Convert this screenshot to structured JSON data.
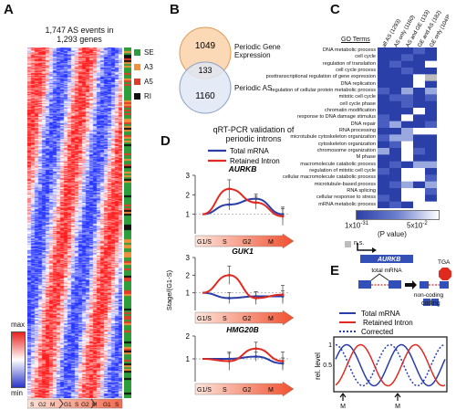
{
  "panelA": {
    "label": "A",
    "title_line1": "1,747 AS events in",
    "title_line2": "1,293 genes",
    "legend": [
      {
        "name": "SE",
        "color": "#2e9e3a"
      },
      {
        "name": "A3",
        "color": "#f0903a"
      },
      {
        "name": "A5",
        "color": "#e23b2a"
      },
      {
        "name": "RI",
        "color": "#111111"
      }
    ],
    "scale_max": "max",
    "scale_min": "min",
    "stages": [
      "S",
      "G2",
      "M",
      "G1",
      "S",
      "G2",
      "M",
      "G1",
      "S"
    ]
  },
  "panelB": {
    "label": "B",
    "top_value": "1049",
    "overlap_value": "133",
    "bottom_value": "1160",
    "top_label_line1": "Periodic Gene",
    "top_label_line2": "Expression",
    "bottom_label": "Periodic AS"
  },
  "panelC": {
    "label": "C",
    "go_header": "GO Terms",
    "columns": [
      "all AS (1293)",
      "AS only (1160)",
      "AS and GE (133)",
      "GE and AS (182)",
      "GE only (1049)"
    ],
    "terms": [
      "DNA metabolic process",
      "cell cycle",
      "regulation of translation",
      "cell cycle process",
      "posttranscriptional regulation of gene expression",
      "DNA replication",
      "regulation of cellular protein metabolic process",
      "mitotic cell cycle",
      "cell cycle phase",
      "chromatin modification",
      "response to DNA damage stimulus",
      "DNA repair",
      "RNA processing",
      "microtubule cytoskeleton organization",
      "cytoskeleton organization",
      "chromosome organization",
      "M phase",
      "macromolecule catabolic process",
      "regulation of mitotic cell cycle",
      "cellular macromolecule catabolic process",
      "microtubule-based process",
      "RNA splicing",
      "cellular response to stress",
      "mRNA metabolic process"
    ],
    "heat": [
      [
        0,
        0,
        0,
        1,
        0
      ],
      [
        0,
        0,
        1,
        0,
        0
      ],
      [
        0,
        1,
        0,
        0,
        3
      ],
      [
        0,
        0,
        1,
        0,
        0
      ],
      [
        0,
        0,
        0,
        3,
        4
      ],
      [
        0,
        0,
        0,
        3,
        0
      ],
      [
        1,
        0,
        2,
        0,
        2
      ],
      [
        0,
        1,
        1,
        0,
        1
      ],
      [
        0,
        0,
        1,
        0,
        0
      ],
      [
        0,
        0,
        0,
        3,
        0
      ],
      [
        1,
        0,
        3,
        0,
        0
      ],
      [
        1,
        2,
        0,
        0,
        1
      ],
      [
        0,
        0,
        2,
        3,
        3
      ],
      [
        1,
        2,
        2,
        0,
        0
      ],
      [
        0,
        1,
        3,
        0,
        0
      ],
      [
        2,
        0,
        3,
        1,
        0
      ],
      [
        0,
        0,
        3,
        0,
        0
      ],
      [
        0,
        1,
        0,
        2,
        2
      ],
      [
        1,
        0,
        3,
        3,
        0
      ],
      [
        0,
        0,
        3,
        3,
        1
      ],
      [
        0,
        1,
        2,
        0,
        2
      ],
      [
        0,
        0,
        3,
        3,
        1
      ],
      [
        1,
        0,
        3,
        3,
        0
      ],
      [
        0,
        1,
        0,
        3,
        3
      ]
    ],
    "scale_low": "1x10",
    "scale_low_exp": "-31",
    "scale_high": "5x10",
    "scale_high_exp": "-2",
    "pvalue_label": "(P value)",
    "ns_label": "n.s."
  },
  "panelD": {
    "label": "D",
    "title_line1": "qRT-PCR validation of",
    "title_line2": "periodic introns",
    "legend_total": "Total mRNA",
    "legend_retained": "Retained Intron",
    "ylabel": "Stage/(G1-S)",
    "stages": [
      "G1/S",
      "S",
      "G2",
      "M"
    ],
    "charts": [
      {
        "gene": "AURKB",
        "yticks": [
          "1",
          "2",
          "3"
        ]
      },
      {
        "gene": "GUK1",
        "yticks": [
          "1",
          "2",
          "3"
        ]
      },
      {
        "gene": "HMG20B",
        "yticks": [
          "1",
          "2"
        ]
      }
    ]
  },
  "panelE": {
    "label": "E",
    "gene": "AURKB",
    "total_mrna": "total mRNA",
    "tga": "TGA",
    "non_coding": "non-coding",
    "coding": "coding",
    "legend_total": "Total mRNA",
    "legend_retained": "Retained Intron",
    "legend_corrected": "Corrected",
    "ylabel": "rel. level",
    "yticks": [
      "0.5",
      "1"
    ],
    "marker": "M"
  },
  "chart_data": [
    {
      "type": "line",
      "title": "AURKB",
      "ylabel": "Stage/(G1-S)",
      "categories": [
        "G1/S",
        "S",
        "G2",
        "M"
      ],
      "series": [
        {
          "name": "Total mRNA",
          "values": [
            1.0,
            1.5,
            1.8,
            1.0
          ]
        },
        {
          "name": "Retained Intron",
          "values": [
            1.0,
            2.3,
            1.6,
            0.9
          ]
        }
      ],
      "ylim": [
        0,
        3
      ]
    },
    {
      "type": "line",
      "title": "GUK1",
      "ylabel": "Stage/(G1-S)",
      "categories": [
        "G1/S",
        "S",
        "G2",
        "M"
      ],
      "series": [
        {
          "name": "Total mRNA",
          "values": [
            1.0,
            0.7,
            0.8,
            0.8
          ]
        },
        {
          "name": "Retained Intron",
          "values": [
            1.0,
            2.0,
            0.7,
            0.9
          ]
        }
      ],
      "ylim": [
        0,
        3
      ]
    },
    {
      "type": "line",
      "title": "HMG20B",
      "ylabel": "Stage/(G1-S)",
      "categories": [
        "G1/S",
        "S",
        "G2",
        "M"
      ],
      "series": [
        {
          "name": "Total mRNA",
          "values": [
            1.0,
            1.0,
            1.1,
            0.8
          ]
        },
        {
          "name": "Retained Intron",
          "values": [
            1.0,
            0.9,
            1.45,
            0.9
          ]
        }
      ],
      "ylim": [
        0,
        2
      ]
    }
  ]
}
